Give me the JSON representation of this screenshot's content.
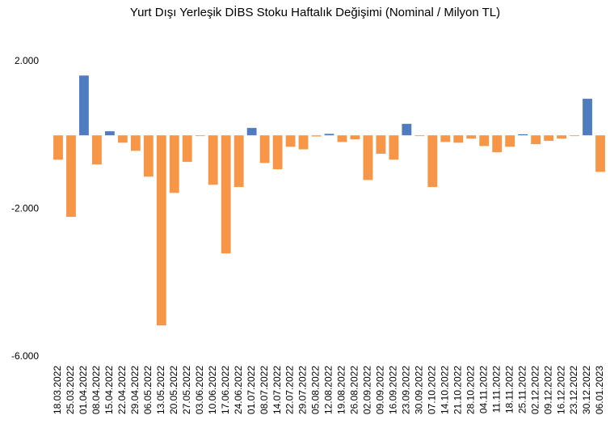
{
  "chart_data": {
    "type": "bar",
    "title": "Yurt Dışı Yerleşik DİBS Stoku Haftalık Değişimi (Nominal / Milyon TL)",
    "categories": [
      "18.03.2022",
      "25.03.2022",
      "01.04.2022",
      "08.04.2022",
      "15.04.2022",
      "22.04.2022",
      "29.04.2022",
      "06.05.2022",
      "13.05.2022",
      "20.05.2022",
      "27.05.2022",
      "03.06.2022",
      "10.06.2022",
      "17.06.2022",
      "24.06.2022",
      "01.07.2022",
      "08.07.2022",
      "14.07.2022",
      "22.07.2022",
      "29.07.2022",
      "05.08.2022",
      "12.08.2022",
      "19.08.2022",
      "26.08.2022",
      "02.09.2022",
      "09.09.2022",
      "16.09.2022",
      "23.09.2022",
      "30.09.2022",
      "07.10.2022",
      "14.10.2022",
      "21.10.2022",
      "28.10.2022",
      "04.11.2022",
      "11.11.2022",
      "18.11.2022",
      "25.11.2022",
      "02.12.2022",
      "09.12.2022",
      "16.12.2022",
      "23.12.2022",
      "30.12.2022",
      "06.01.2023"
    ],
    "values": [
      -660,
      -2210,
      1620,
      -790,
      110,
      -200,
      -420,
      -1120,
      -5150,
      -1560,
      -720,
      -20,
      -1340,
      -3200,
      -1400,
      200,
      -750,
      -920,
      -310,
      -380,
      -30,
      40,
      -180,
      -110,
      -1210,
      -500,
      -660,
      310,
      -20,
      -1400,
      -180,
      -200,
      -90,
      -290,
      -460,
      -310,
      30,
      -240,
      -150,
      -90,
      -20,
      990,
      -990
    ],
    "positive_color": "#4f7bc1",
    "negative_color": "#f79646",
    "ylim": [
      -6000,
      2000
    ],
    "yticks": [
      {
        "value": -6000,
        "label": "-6.000"
      },
      {
        "value": -2000,
        "label": "-2.000"
      },
      {
        "value": 2000,
        "label": "2.000"
      }
    ],
    "grid": false
  }
}
